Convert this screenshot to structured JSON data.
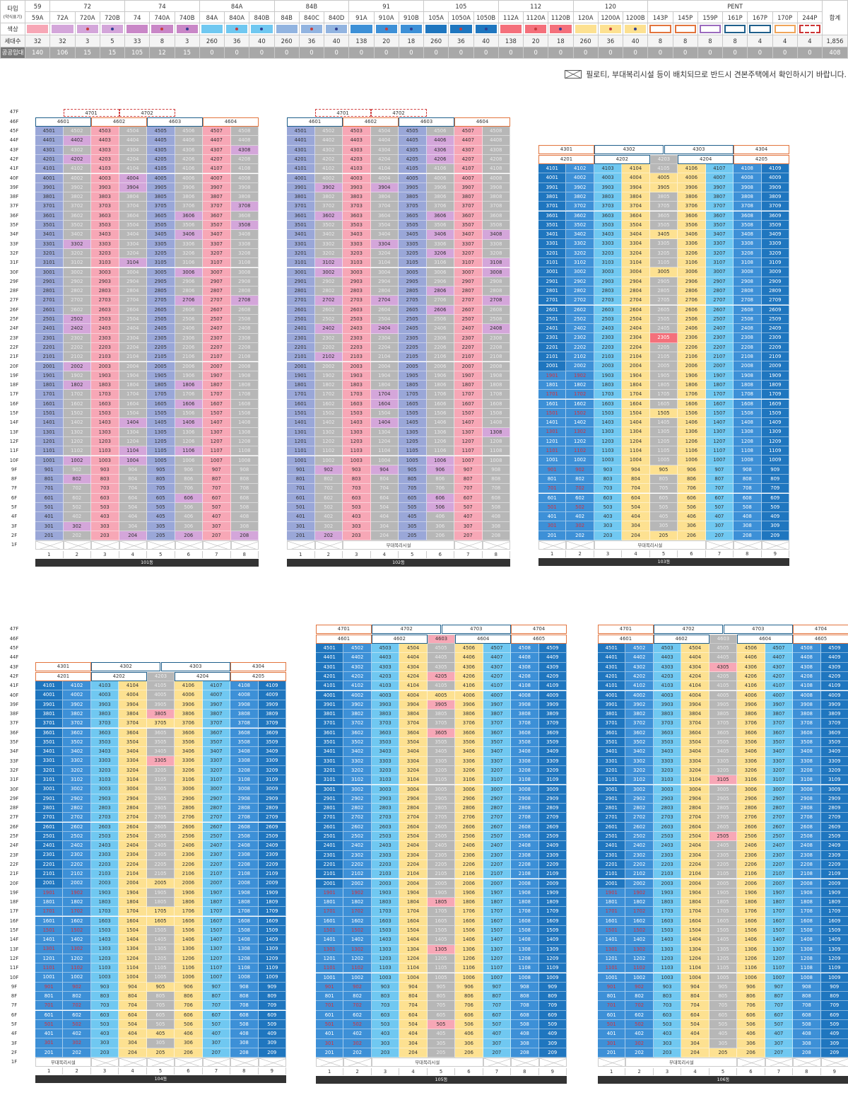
{
  "legend": {
    "row_type_label": "타입",
    "row_type_sub": "(약식표기)",
    "row_color_label": "색상",
    "row_count_label": "세대수",
    "row_public_label": "공공임대",
    "total_label": "합계",
    "groups": [
      {
        "label": "59",
        "subs": [
          "59A"
        ]
      },
      {
        "label": "72",
        "subs": [
          "72A",
          "720A",
          "720B"
        ]
      },
      {
        "label": "74",
        "subs": [
          "74",
          "740A",
          "740B"
        ]
      },
      {
        "label": "84A",
        "subs": [
          "84A",
          "840A",
          "840B"
        ]
      },
      {
        "label": "84B",
        "subs": [
          "84B",
          "840C",
          "840D"
        ]
      },
      {
        "label": "91",
        "subs": [
          "91A",
          "910A",
          "910B"
        ]
      },
      {
        "label": "105",
        "subs": [
          "105A",
          "1050A",
          "1050B"
        ]
      },
      {
        "label": "112",
        "subs": [
          "112A",
          "1120A",
          "1120B"
        ]
      },
      {
        "label": "120",
        "subs": [
          "120A",
          "1200A",
          "1200B"
        ]
      },
      {
        "label": "PENT",
        "subs": [
          "143P",
          "145P",
          "159P",
          "161P",
          "167P",
          "170P",
          "244P"
        ]
      }
    ],
    "colors": [
      "#f7a7b6",
      "#d4a6da",
      "#d4a6da",
      "#d4a6da",
      "#c987c7",
      "#c987c7",
      "#c987c7",
      "#70c8f1",
      "#70c8f1",
      "#70c8f1",
      "#92b4e0",
      "#92b4e0",
      "#92b4e0",
      "#3d90d7",
      "#3d90d7",
      "#3d90d7",
      "#1f76bf",
      "#1f76bf",
      "#1f76bf",
      "#f4707b",
      "#f4707b",
      "#f4707b",
      "#fde191",
      "#fde191",
      "#fde191",
      "#e2743d",
      "#e2743d",
      "#9b6bbd",
      "#1f5f8b",
      "#1f5f8b",
      "#f0a55a",
      "#cc3333"
    ],
    "dots": [
      "",
      "",
      "#c73a3a",
      "#2f3e91",
      "",
      "#c73a3a",
      "#2f3e91",
      "",
      "#c73a3a",
      "#2f3e91",
      "",
      "#c73a3a",
      "#2f3e91",
      "",
      "#c73a3a",
      "#2f3e91",
      "",
      "#c73a3a",
      "#2f3e91",
      "",
      "#c73a3a",
      "#2f3e91",
      "",
      "#c73a3a",
      "#2f3e91",
      "",
      "",
      "",
      "",
      "",
      "",
      ""
    ],
    "counts": [
      "32",
      "32",
      "3",
      "5",
      "33",
      "8",
      "3",
      "260",
      "36",
      "40",
      "260",
      "36",
      "40",
      "138",
      "20",
      "18",
      "260",
      "36",
      "40",
      "138",
      "20",
      "18",
      "260",
      "36",
      "40",
      "8",
      "8",
      "8",
      "8",
      "4",
      "4",
      "4"
    ],
    "count_total": "1,856",
    "public": [
      "140",
      "106",
      "15",
      "15",
      "105",
      "12",
      "15",
      "0",
      "0",
      "0",
      "0",
      "0",
      "0",
      "0",
      "0",
      "0",
      "0",
      "0",
      "0",
      "0",
      "0",
      "0",
      "0",
      "0",
      "0",
      "0",
      "0",
      "0",
      "0",
      "0",
      "0",
      "0"
    ],
    "public_total": "408"
  },
  "notice": "필로티, 부대복리시설 등이 배치되므로 반드시 견본주택에서 확인하시기 바랍니다.",
  "floors_label_1f": "1F",
  "facility_label": "부대복리시설",
  "buildings": [
    {
      "name": "101동",
      "lines": [
        "1",
        "2",
        "3",
        "4",
        "5",
        "6",
        "7",
        "8"
      ],
      "pent_top": [
        "4701",
        "4702"
      ],
      "pent": [
        "4601",
        "4602",
        "4603",
        "4604"
      ],
      "colors": {
        "1": "#9aa7d8",
        "2": "#b7b7b7",
        "3": "#f7a7b6",
        "4": "#b7b7b7",
        "5": "#9aa7d8",
        "6": "#b7b7b7",
        "7": "#f7a7b6",
        "8": "#b7b7b7"
      },
      "accent": {
        "4402": "#d4a6da",
        "4202": "#d4a6da",
        "3904": "#d4a6da",
        "4004": "#d4a6da",
        "4308": "#d4a6da",
        "3708": "#d4a6da",
        "3606": "#d4a6da",
        "3508": "#d4a6da",
        "3406": "#d4a6da",
        "3302": "#d4a6da",
        "3104": "#d4a6da",
        "3006": "#d4a6da",
        "2708": "#d4a6da",
        "2706": "#d4a6da",
        "2502": "#d4a6da",
        "2402": "#d4a6da",
        "2002": "#d4a6da",
        "1802": "#d4a6da",
        "1806": "#d4a6da",
        "1606": "#d4a6da",
        "1404": "#d4a6da",
        "1406": "#d4a6da",
        "1104": "#d4a6da",
        "1106": "#d4a6da",
        "1004": "#d4a6da",
        "1002": "#d4a6da",
        "802": "#d4a6da",
        "606": "#d4a6da",
        "302": "#d4a6da",
        "204": "#d4a6da",
        "206": "#d4a6da",
        "208": "#d4a6da"
      },
      "facility": false
    },
    {
      "name": "102동",
      "lines": [
        "1",
        "2",
        "3",
        "4",
        "5",
        "6",
        "7",
        "8"
      ],
      "pent_top": [
        "4701",
        "4702"
      ],
      "pent": [
        "4601",
        "4602",
        "4603",
        "4604"
      ],
      "colors": {
        "1": "#9aa7d8",
        "2": "#b7b7b7",
        "3": "#f7a7b6",
        "4": "#b7b7b7",
        "5": "#9aa7d8",
        "6": "#b7b7b7",
        "7": "#f7a7b6",
        "8": "#b7b7b7"
      },
      "accent": {
        "4406": "#d4a6da",
        "4306": "#d4a6da",
        "4206": "#d4a6da",
        "3902": "#d4a6da",
        "3904": "#d4a6da",
        "3602": "#d4a6da",
        "3606": "#d4a6da",
        "3406": "#d4a6da",
        "3408": "#d4a6da",
        "3304": "#d4a6da",
        "3206": "#d4a6da",
        "3102": "#d4a6da",
        "3108": "#d4a6da",
        "3002": "#d4a6da",
        "3008": "#d4a6da",
        "2806": "#d4a6da",
        "2702": "#d4a6da",
        "2704": "#d4a6da",
        "2708": "#d4a6da",
        "2606": "#d4a6da",
        "2402": "#d4a6da",
        "2404": "#d4a6da",
        "2408": "#d4a6da",
        "2102": "#d4a6da",
        "1704": "#d4a6da",
        "1604": "#d4a6da",
        "1404": "#d4a6da",
        "1308": "#d4a6da",
        "1006": "#d4a6da",
        "902": "#d4a6da",
        "904": "#d4a6da",
        "906": "#d4a6da",
        "606": "#d4a6da",
        "506": "#d4a6da",
        "202": "#d4a6da"
      },
      "facility": true
    },
    {
      "name": "103동",
      "lines": [
        "1",
        "2",
        "3",
        "4",
        "5",
        "6",
        "7",
        "8",
        "9"
      ],
      "pent_top": [
        "4301",
        "4302",
        "4303",
        "4304"
      ],
      "pent": [
        "4201",
        "4202",
        "4203",
        "4204",
        "4205"
      ],
      "colors": {
        "1": "#1f76bf",
        "2": "#3d90d7",
        "3": "#70c8f1",
        "4": "#fde191",
        "5": "#b7b7b7",
        "6": "#fde191",
        "7": "#70c8f1",
        "8": "#3d90d7",
        "9": "#1f76bf"
      },
      "accent": {
        "4005": "#fde191",
        "3905": "#fde191",
        "3405": "#fde191",
        "3005": "#fde191",
        "2305": "#f4707b",
        "1505": "#fde191",
        "905": "#fde191",
        "205": "#fde191"
      },
      "facility": true,
      "low_floor_cut": 20
    },
    {
      "name": "104동",
      "lines": [
        "1",
        "2",
        "3",
        "4",
        "5",
        "6",
        "7",
        "8",
        "9"
      ],
      "pent_top": [
        "4301",
        "4302",
        "4303",
        "4304"
      ],
      "pent": [
        "4201",
        "4202",
        "4203",
        "4204",
        "4205"
      ],
      "colors": {
        "1": "#1f76bf",
        "2": "#3d90d7",
        "3": "#70c8f1",
        "4": "#fde191",
        "5": "#b7b7b7",
        "6": "#fde191",
        "7": "#70c8f1",
        "8": "#3d90d7",
        "9": "#1f76bf"
      },
      "accent": {
        "3805": "#f7a7b6",
        "3705": "#fde191",
        "3305": "#f7a7b6",
        "2005": "#fde191",
        "1705": "#fde191",
        "1605": "#fde191",
        "905": "#fde191",
        "405": "#fde191",
        "205": "#fde191"
      },
      "facility": true,
      "low_floor_cut": 20
    },
    {
      "name": "105동",
      "lines": [
        "1",
        "2",
        "3",
        "4",
        "5",
        "6",
        "7",
        "8",
        "9"
      ],
      "pent_top": [
        "4701",
        "4702",
        "4703",
        "4704"
      ],
      "pent": [
        "4601",
        "4602",
        "4603",
        "4604",
        "4605"
      ],
      "colors": {
        "1": "#1f76bf",
        "2": "#3d90d7",
        "3": "#70c8f1",
        "4": "#fde191",
        "5": "#b7b7b7",
        "6": "#fde191",
        "7": "#70c8f1",
        "8": "#3d90d7",
        "9": "#1f76bf"
      },
      "accent": {
        "4205": "#f7a7b6",
        "4005": "#fde191",
        "3905": "#f7a7b6",
        "3605": "#f7a7b6",
        "1805": "#f7a7b6",
        "1305": "#f7a7b6",
        "505": "#f7a7b6"
      },
      "facility": true,
      "low_floor_cut": 20
    },
    {
      "name": "106동",
      "lines": [
        "1",
        "2",
        "3",
        "4",
        "5",
        "6",
        "7",
        "8",
        "9"
      ],
      "pent_top": [
        "4701",
        "4702",
        "4703",
        "4704"
      ],
      "pent": [
        "4601",
        "4602",
        "4603",
        "4604",
        "4605"
      ],
      "colors": {
        "1": "#1f76bf",
        "2": "#3d90d7",
        "3": "#70c8f1",
        "4": "#fde191",
        "5": "#b7b7b7",
        "6": "#fde191",
        "7": "#70c8f1",
        "8": "#3d90d7",
        "9": "#1f76bf"
      },
      "accent": {
        "4305": "#f7a7b6",
        "3105": "#f7a7b6",
        "2505": "#f7a7b6",
        "205": "#fde191"
      },
      "facility": true,
      "low_floor_cut": 20
    }
  ]
}
